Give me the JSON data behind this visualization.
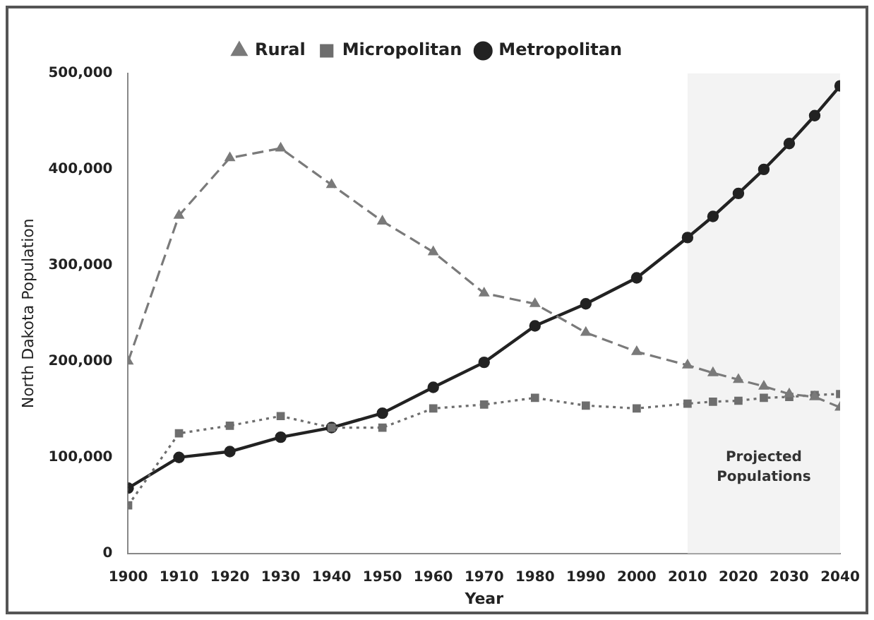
{
  "chart_data": {
    "type": "line",
    "xlabel": "Year",
    "ylabel": "North Dakota Population",
    "xlim": [
      1900,
      2040
    ],
    "xticks": [
      1900,
      1910,
      1920,
      1930,
      1940,
      1950,
      1960,
      1970,
      1980,
      1990,
      2000,
      2010,
      2020,
      2030,
      2040
    ],
    "ylim": [
      0,
      500000
    ],
    "yticks": [
      0,
      {
        "value": 100000,
        "label": "100,000"
      },
      {
        "value": 200000,
        "label": "200,000"
      },
      {
        "value": 300000,
        "label": "300,000"
      },
      {
        "value": 400000,
        "label": "400,000"
      },
      {
        "value": 500000,
        "label": "500,000"
      }
    ],
    "grid": false,
    "legend": "top",
    "x": [
      1900,
      1910,
      1920,
      1930,
      1940,
      1950,
      1960,
      1970,
      1980,
      1990,
      2000,
      2010,
      2015,
      2020,
      2025,
      2030,
      2035,
      2040
    ],
    "series": [
      {
        "name": "Rural",
        "color": "#7a7a7a",
        "marker": "triangle",
        "line_style": "dashed",
        "values": [
          200000,
          352000,
          412000,
          422000,
          384000,
          346000,
          314000,
          271000,
          260000,
          230000,
          210000,
          196000,
          188000,
          181000,
          174000,
          166000,
          163000,
          152000
        ]
      },
      {
        "name": "Micropolitan",
        "color": "#6e6e6e",
        "marker": "square",
        "line_style": "dotted",
        "values": [
          50000,
          125000,
          133000,
          143000,
          131000,
          131000,
          151000,
          155000,
          162000,
          154000,
          151000,
          156000,
          158000,
          159000,
          162000,
          163000,
          165000,
          166000
        ]
      },
      {
        "name": "Metropolitan",
        "color": "#222222",
        "marker": "circle",
        "line_style": "solid",
        "values": [
          68000,
          100000,
          106000,
          121000,
          131000,
          146000,
          173000,
          199000,
          237000,
          260000,
          287000,
          329000,
          351000,
          375000,
          400000,
          427000,
          456000,
          487000
        ]
      }
    ],
    "bands": [
      {
        "axis": "x",
        "from": 2010,
        "to": 2040,
        "label": "Projected Populations",
        "color": "#f3f3f3"
      }
    ]
  }
}
